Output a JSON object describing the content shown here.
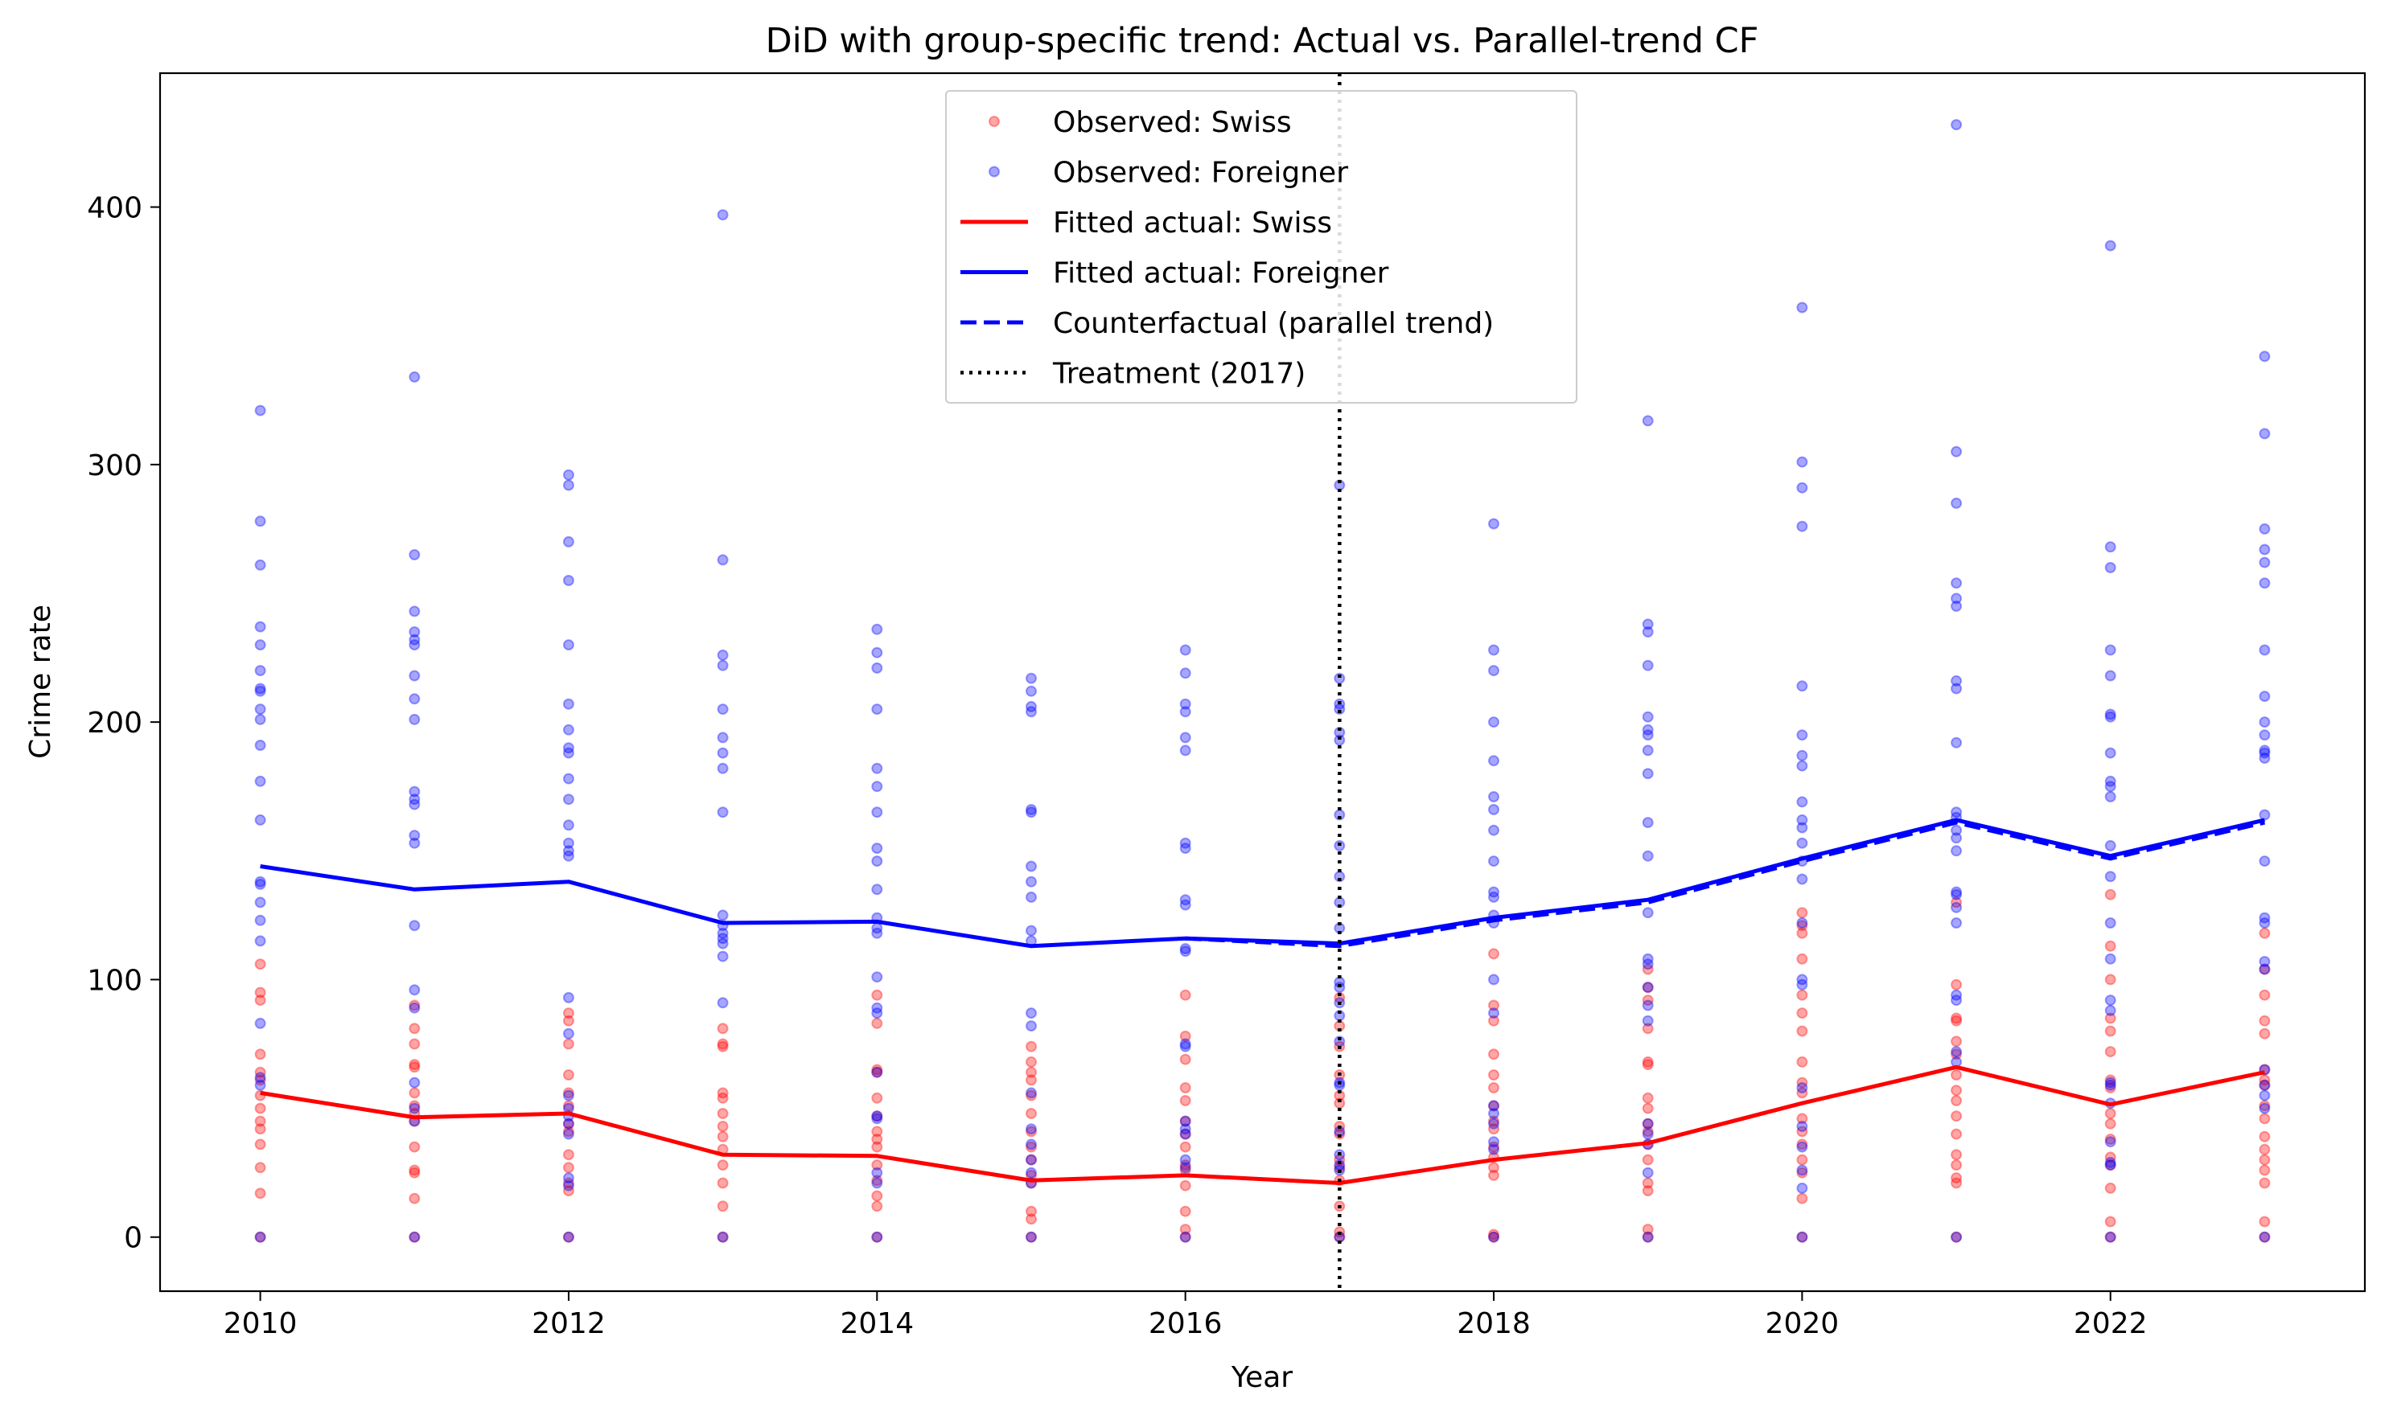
{
  "chart_data": {
    "type": "scatter",
    "title": "DiD with group-specific trend: Actual vs. Parallel-trend CF",
    "xlabel": "Year",
    "ylabel": "Crime rate",
    "xlim": [
      2009.35,
      2023.65
    ],
    "ylim": [
      -21,
      452
    ],
    "xticks": [
      2010,
      2012,
      2014,
      2016,
      2018,
      2020,
      2022
    ],
    "yticks": [
      0,
      100,
      200,
      300,
      400
    ],
    "grid": false,
    "legend_position": "top-center",
    "treatment_year": 2017,
    "colors": {
      "swiss": "#ff0000",
      "foreigner": "#0000ff",
      "treatment": "#000000"
    },
    "legend": [
      {
        "key": "observed_swiss",
        "label": "Observed: Swiss",
        "kind": "marker",
        "color": "#ff0000"
      },
      {
        "key": "observed_foreigner",
        "label": "Observed: Foreigner",
        "kind": "marker",
        "color": "#0000ff"
      },
      {
        "key": "fitted_swiss",
        "label": "Fitted actual: Swiss",
        "kind": "solid",
        "color": "#ff0000"
      },
      {
        "key": "fitted_foreigner",
        "label": "Fitted actual: Foreigner",
        "kind": "solid",
        "color": "#0000ff"
      },
      {
        "key": "counterfactual",
        "label": "Counterfactual (parallel trend)",
        "kind": "dashed",
        "color": "#0000ff"
      },
      {
        "key": "treatment",
        "label": "Treatment (2017)",
        "kind": "dotted",
        "color": "#000000"
      }
    ],
    "series": [
      {
        "name": "Observed: Swiss",
        "type": "scatter",
        "points": [
          {
            "x": 2010,
            "y": [
              0,
              17,
              27,
              36,
              42,
              45,
              50,
              55,
              61,
              64,
              71,
              92,
              95,
              106
            ]
          },
          {
            "x": 2011,
            "y": [
              0,
              15,
              25,
              26,
              35,
              45,
              48,
              51,
              56,
              66,
              67,
              75,
              81,
              90
            ]
          },
          {
            "x": 2012,
            "y": [
              0,
              18,
              21,
              27,
              32,
              41,
              44,
              51,
              56,
              63,
              75,
              84,
              87
            ]
          },
          {
            "x": 2013,
            "y": [
              0,
              12,
              21,
              28,
              34,
              39,
              43,
              48,
              54,
              56,
              74,
              75,
              81
            ]
          },
          {
            "x": 2014,
            "y": [
              0,
              12,
              16,
              22,
              28,
              35,
              38,
              41,
              47,
              54,
              64,
              65,
              83,
              94
            ]
          },
          {
            "x": 2015,
            "y": [
              0,
              7,
              10,
              21,
              24,
              30,
              35,
              41,
              48,
              55,
              61,
              64,
              68,
              74
            ]
          },
          {
            "x": 2016,
            "y": [
              0,
              3,
              10,
              20,
              26,
              28,
              35,
              40,
              45,
              53,
              58,
              69,
              78,
              94
            ]
          },
          {
            "x": 2017,
            "y": [
              0,
              2,
              12,
              22,
              27,
              30,
              40,
              43,
              52,
              55,
              63,
              74,
              82,
              93
            ]
          },
          {
            "x": 2018,
            "y": [
              0,
              1,
              24,
              27,
              31,
              35,
              42,
              45,
              51,
              58,
              63,
              71,
              84,
              90,
              110
            ]
          },
          {
            "x": 2019,
            "y": [
              0,
              3,
              18,
              21,
              30,
              36,
              41,
              44,
              50,
              54,
              67,
              68,
              81,
              92,
              97,
              104
            ]
          },
          {
            "x": 2020,
            "y": [
              0,
              15,
              25,
              30,
              36,
              41,
              46,
              56,
              60,
              68,
              80,
              87,
              94,
              108,
              118,
              121,
              126
            ]
          },
          {
            "x": 2021,
            "y": [
              0,
              21,
              23,
              28,
              32,
              40,
              47,
              53,
              57,
              63,
              71,
              76,
              84,
              85,
              98,
              130
            ]
          },
          {
            "x": 2022,
            "y": [
              0,
              6,
              19,
              28,
              31,
              38,
              44,
              48,
              58,
              61,
              72,
              80,
              85,
              100,
              113,
              133
            ]
          },
          {
            "x": 2023,
            "y": [
              0,
              6,
              21,
              26,
              30,
              34,
              39,
              46,
              51,
              59,
              61,
              65,
              79,
              84,
              94,
              104,
              118
            ]
          }
        ]
      },
      {
        "name": "Observed: Foreigner",
        "type": "scatter",
        "points": [
          {
            "x": 2010,
            "y": [
              0,
              59,
              62,
              83,
              115,
              123,
              130,
              137,
              138,
              162,
              177,
              191,
              201,
              205,
              212,
              213,
              220,
              230,
              237,
              261,
              278,
              321
            ]
          },
          {
            "x": 2011,
            "y": [
              0,
              45,
              50,
              60,
              89,
              96,
              121,
              153,
              156,
              168,
              170,
              173,
              201,
              209,
              218,
              230,
              232,
              235,
              243,
              265,
              334
            ]
          },
          {
            "x": 2012,
            "y": [
              0,
              20,
              23,
              40,
              44,
              47,
              50,
              55,
              79,
              93,
              148,
              150,
              153,
              160,
              170,
              178,
              188,
              190,
              197,
              207,
              230,
              255,
              270,
              292,
              296
            ]
          },
          {
            "x": 2013,
            "y": [
              0,
              91,
              109,
              114,
              116,
              118,
              121,
              125,
              165,
              182,
              188,
              194,
              205,
              222,
              226,
              263,
              397
            ]
          },
          {
            "x": 2014,
            "y": [
              0,
              21,
              25,
              46,
              47,
              64,
              87,
              89,
              101,
              118,
              120,
              124,
              135,
              146,
              151,
              165,
              175,
              182,
              205,
              221,
              227,
              236
            ]
          },
          {
            "x": 2015,
            "y": [
              0,
              21,
              25,
              30,
              36,
              42,
              56,
              82,
              87,
              115,
              119,
              132,
              138,
              144,
              165,
              166,
              204,
              206,
              212,
              217
            ]
          },
          {
            "x": 2016,
            "y": [
              0,
              27,
              30,
              40,
              42,
              45,
              74,
              75,
              111,
              112,
              129,
              131,
              151,
              153,
              189,
              194,
              204,
              207,
              219,
              228
            ]
          },
          {
            "x": 2017,
            "y": [
              0,
              26,
              28,
              32,
              41,
              59,
              60,
              76,
              86,
              91,
              97,
              99,
              120,
              130,
              140,
              152,
              164,
              193,
              196,
              205,
              207,
              217,
              292
            ]
          },
          {
            "x": 2018,
            "y": [
              0,
              34,
              37,
              44,
              48,
              51,
              87,
              100,
              122,
              125,
              132,
              134,
              146,
              158,
              166,
              171,
              185,
              200,
              220,
              228,
              277
            ]
          },
          {
            "x": 2019,
            "y": [
              0,
              25,
              36,
              40,
              44,
              84,
              90,
              97,
              106,
              108,
              126,
              148,
              161,
              180,
              189,
              195,
              197,
              202,
              222,
              235,
              238,
              317
            ]
          },
          {
            "x": 2020,
            "y": [
              0,
              19,
              26,
              35,
              43,
              58,
              98,
              100,
              122,
              139,
              146,
              153,
              159,
              162,
              169,
              183,
              187,
              195,
              214,
              276,
              291,
              301,
              361
            ]
          },
          {
            "x": 2021,
            "y": [
              0,
              68,
              72,
              92,
              94,
              122,
              128,
              133,
              134,
              150,
              155,
              158,
              163,
              165,
              192,
              213,
              216,
              245,
              248,
              254,
              285,
              305,
              432
            ]
          },
          {
            "x": 2022,
            "y": [
              0,
              28,
              29,
              37,
              52,
              59,
              60,
              88,
              92,
              108,
              122,
              140,
              152,
              171,
              175,
              177,
              188,
              202,
              203,
              218,
              228,
              260,
              268,
              385
            ]
          },
          {
            "x": 2023,
            "y": [
              0,
              50,
              55,
              59,
              65,
              104,
              107,
              122,
              124,
              146,
              164,
              186,
              188,
              189,
              195,
              200,
              210,
              228,
              254,
              262,
              267,
              275,
              312,
              342
            ]
          }
        ]
      },
      {
        "name": "Fitted actual: Swiss",
        "type": "line",
        "x": [
          2010,
          2011,
          2012,
          2013,
          2014,
          2015,
          2016,
          2017,
          2018,
          2019,
          2020,
          2021,
          2022,
          2023
        ],
        "y": [
          56,
          46.5,
          48,
          32,
          31.5,
          22,
          24,
          21,
          30,
          36.5,
          52,
          66,
          51.5,
          64
        ]
      },
      {
        "name": "Fitted actual: Foreigner",
        "type": "line",
        "x": [
          2010,
          2011,
          2012,
          2013,
          2014,
          2015,
          2016,
          2017,
          2018,
          2019,
          2020,
          2021,
          2022,
          2023
        ],
        "y": [
          144,
          135,
          138,
          122,
          122.5,
          113,
          116,
          114,
          124,
          131,
          147,
          162,
          148,
          162
        ]
      },
      {
        "name": "Counterfactual (parallel trend)",
        "type": "dashed",
        "x": [
          2016,
          2017,
          2018,
          2019,
          2020,
          2021,
          2022,
          2023
        ],
        "y": [
          116,
          113,
          123,
          130,
          146,
          161,
          147,
          161
        ]
      }
    ]
  }
}
